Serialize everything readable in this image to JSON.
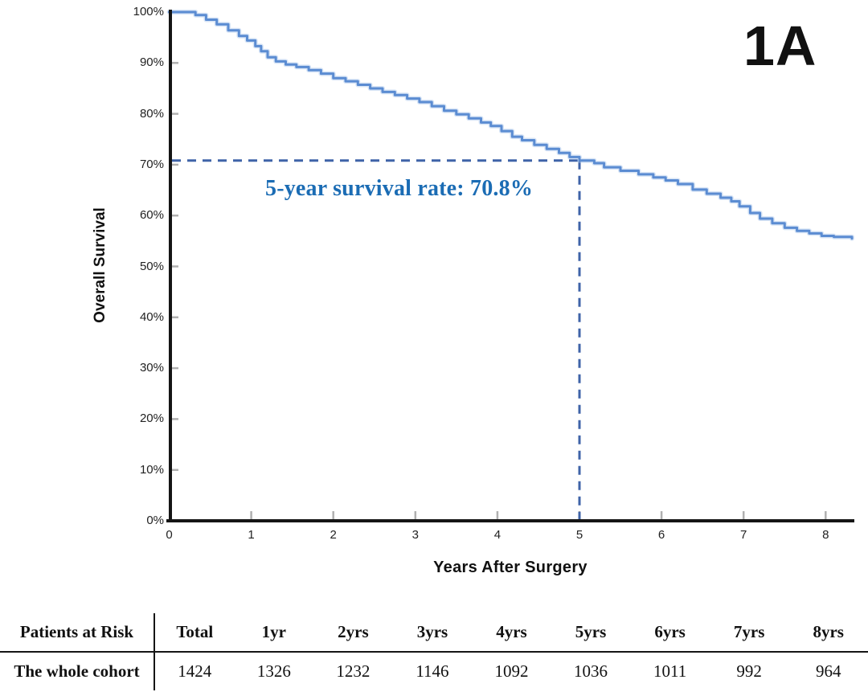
{
  "figure_label": "1A",
  "annotation": {
    "text": "5-year survival rate: 70.8%",
    "color": "#1b6cb4"
  },
  "chart_data": {
    "type": "line",
    "subtype": "kaplan-meier-step-curve",
    "title": "",
    "xlabel": "Years After Surgery",
    "ylabel": "Overall Survival",
    "x_ticks": [
      "0",
      "1",
      "2",
      "3",
      "4",
      "5",
      "6",
      "7",
      "8"
    ],
    "y_ticks": [
      "100%",
      "90%",
      "80%",
      "70%",
      "60%",
      "50%",
      "40%",
      "30%",
      "20%",
      "10%",
      "0%"
    ],
    "xlim": [
      0,
      8.35
    ],
    "ylim": [
      0,
      100
    ],
    "grid": false,
    "legend": "none",
    "series": [
      {
        "name": "Overall Survival (whole cohort)",
        "color": "#5b8cd2",
        "halo_color": "#a9c5eb",
        "points": [
          [
            0,
            100
          ],
          [
            0.26,
            100
          ],
          [
            0.32,
            99.4
          ],
          [
            0.45,
            98.5
          ],
          [
            0.58,
            97.6
          ],
          [
            0.72,
            96.4
          ],
          [
            0.85,
            95.3
          ],
          [
            0.95,
            94.4
          ],
          [
            1.05,
            93.3
          ],
          [
            1.12,
            92.3
          ],
          [
            1.2,
            91.1
          ],
          [
            1.3,
            90.3
          ],
          [
            1.42,
            89.7
          ],
          [
            1.55,
            89.2
          ],
          [
            1.7,
            88.6
          ],
          [
            1.85,
            87.9
          ],
          [
            2.0,
            87.0
          ],
          [
            2.15,
            86.4
          ],
          [
            2.3,
            85.7
          ],
          [
            2.45,
            85.0
          ],
          [
            2.6,
            84.3
          ],
          [
            2.75,
            83.7
          ],
          [
            2.9,
            83.0
          ],
          [
            3.05,
            82.3
          ],
          [
            3.2,
            81.5
          ],
          [
            3.35,
            80.6
          ],
          [
            3.5,
            79.9
          ],
          [
            3.65,
            79.1
          ],
          [
            3.8,
            78.3
          ],
          [
            3.92,
            77.6
          ],
          [
            4.05,
            76.6
          ],
          [
            4.18,
            75.5
          ],
          [
            4.3,
            74.8
          ],
          [
            4.45,
            73.9
          ],
          [
            4.6,
            73.1
          ],
          [
            4.75,
            72.3
          ],
          [
            4.88,
            71.5
          ],
          [
            5.0,
            70.8
          ],
          [
            5.18,
            70.3
          ],
          [
            5.3,
            69.5
          ],
          [
            5.5,
            68.8
          ],
          [
            5.72,
            68.1
          ],
          [
            5.9,
            67.5
          ],
          [
            6.05,
            66.9
          ],
          [
            6.2,
            66.2
          ],
          [
            6.38,
            65.1
          ],
          [
            6.55,
            64.3
          ],
          [
            6.72,
            63.5
          ],
          [
            6.85,
            62.8
          ],
          [
            6.95,
            61.8
          ],
          [
            7.08,
            60.5
          ],
          [
            7.2,
            59.4
          ],
          [
            7.35,
            58.5
          ],
          [
            7.5,
            57.6
          ],
          [
            7.65,
            57.0
          ],
          [
            7.8,
            56.5
          ],
          [
            7.95,
            56.0
          ],
          [
            8.1,
            55.8
          ],
          [
            8.32,
            55.5
          ]
        ]
      }
    ],
    "reference": {
      "x_years": 5,
      "y_percent": 70.8,
      "style": "dashed",
      "color": "#3f63a8"
    }
  },
  "risk_table": {
    "row_header": "Patients at Risk",
    "columns": [
      "Total",
      "1yr",
      "2yrs",
      "3yrs",
      "4yrs",
      "5yrs",
      "6yrs",
      "7yrs",
      "8yrs"
    ],
    "rows": [
      {
        "label": "The whole cohort",
        "values": [
          "1424",
          "1326",
          "1232",
          "1146",
          "1092",
          "1036",
          "1011",
          "992",
          "964"
        ]
      }
    ]
  },
  "colors": {
    "curve": "#5b8cd2",
    "curve_halo": "#a9c5eb",
    "dashed_reference": "#3f63a8",
    "axis": "#151515",
    "tick_marks": "#b0b0b0",
    "annotation_text": "#1b6cb4"
  }
}
